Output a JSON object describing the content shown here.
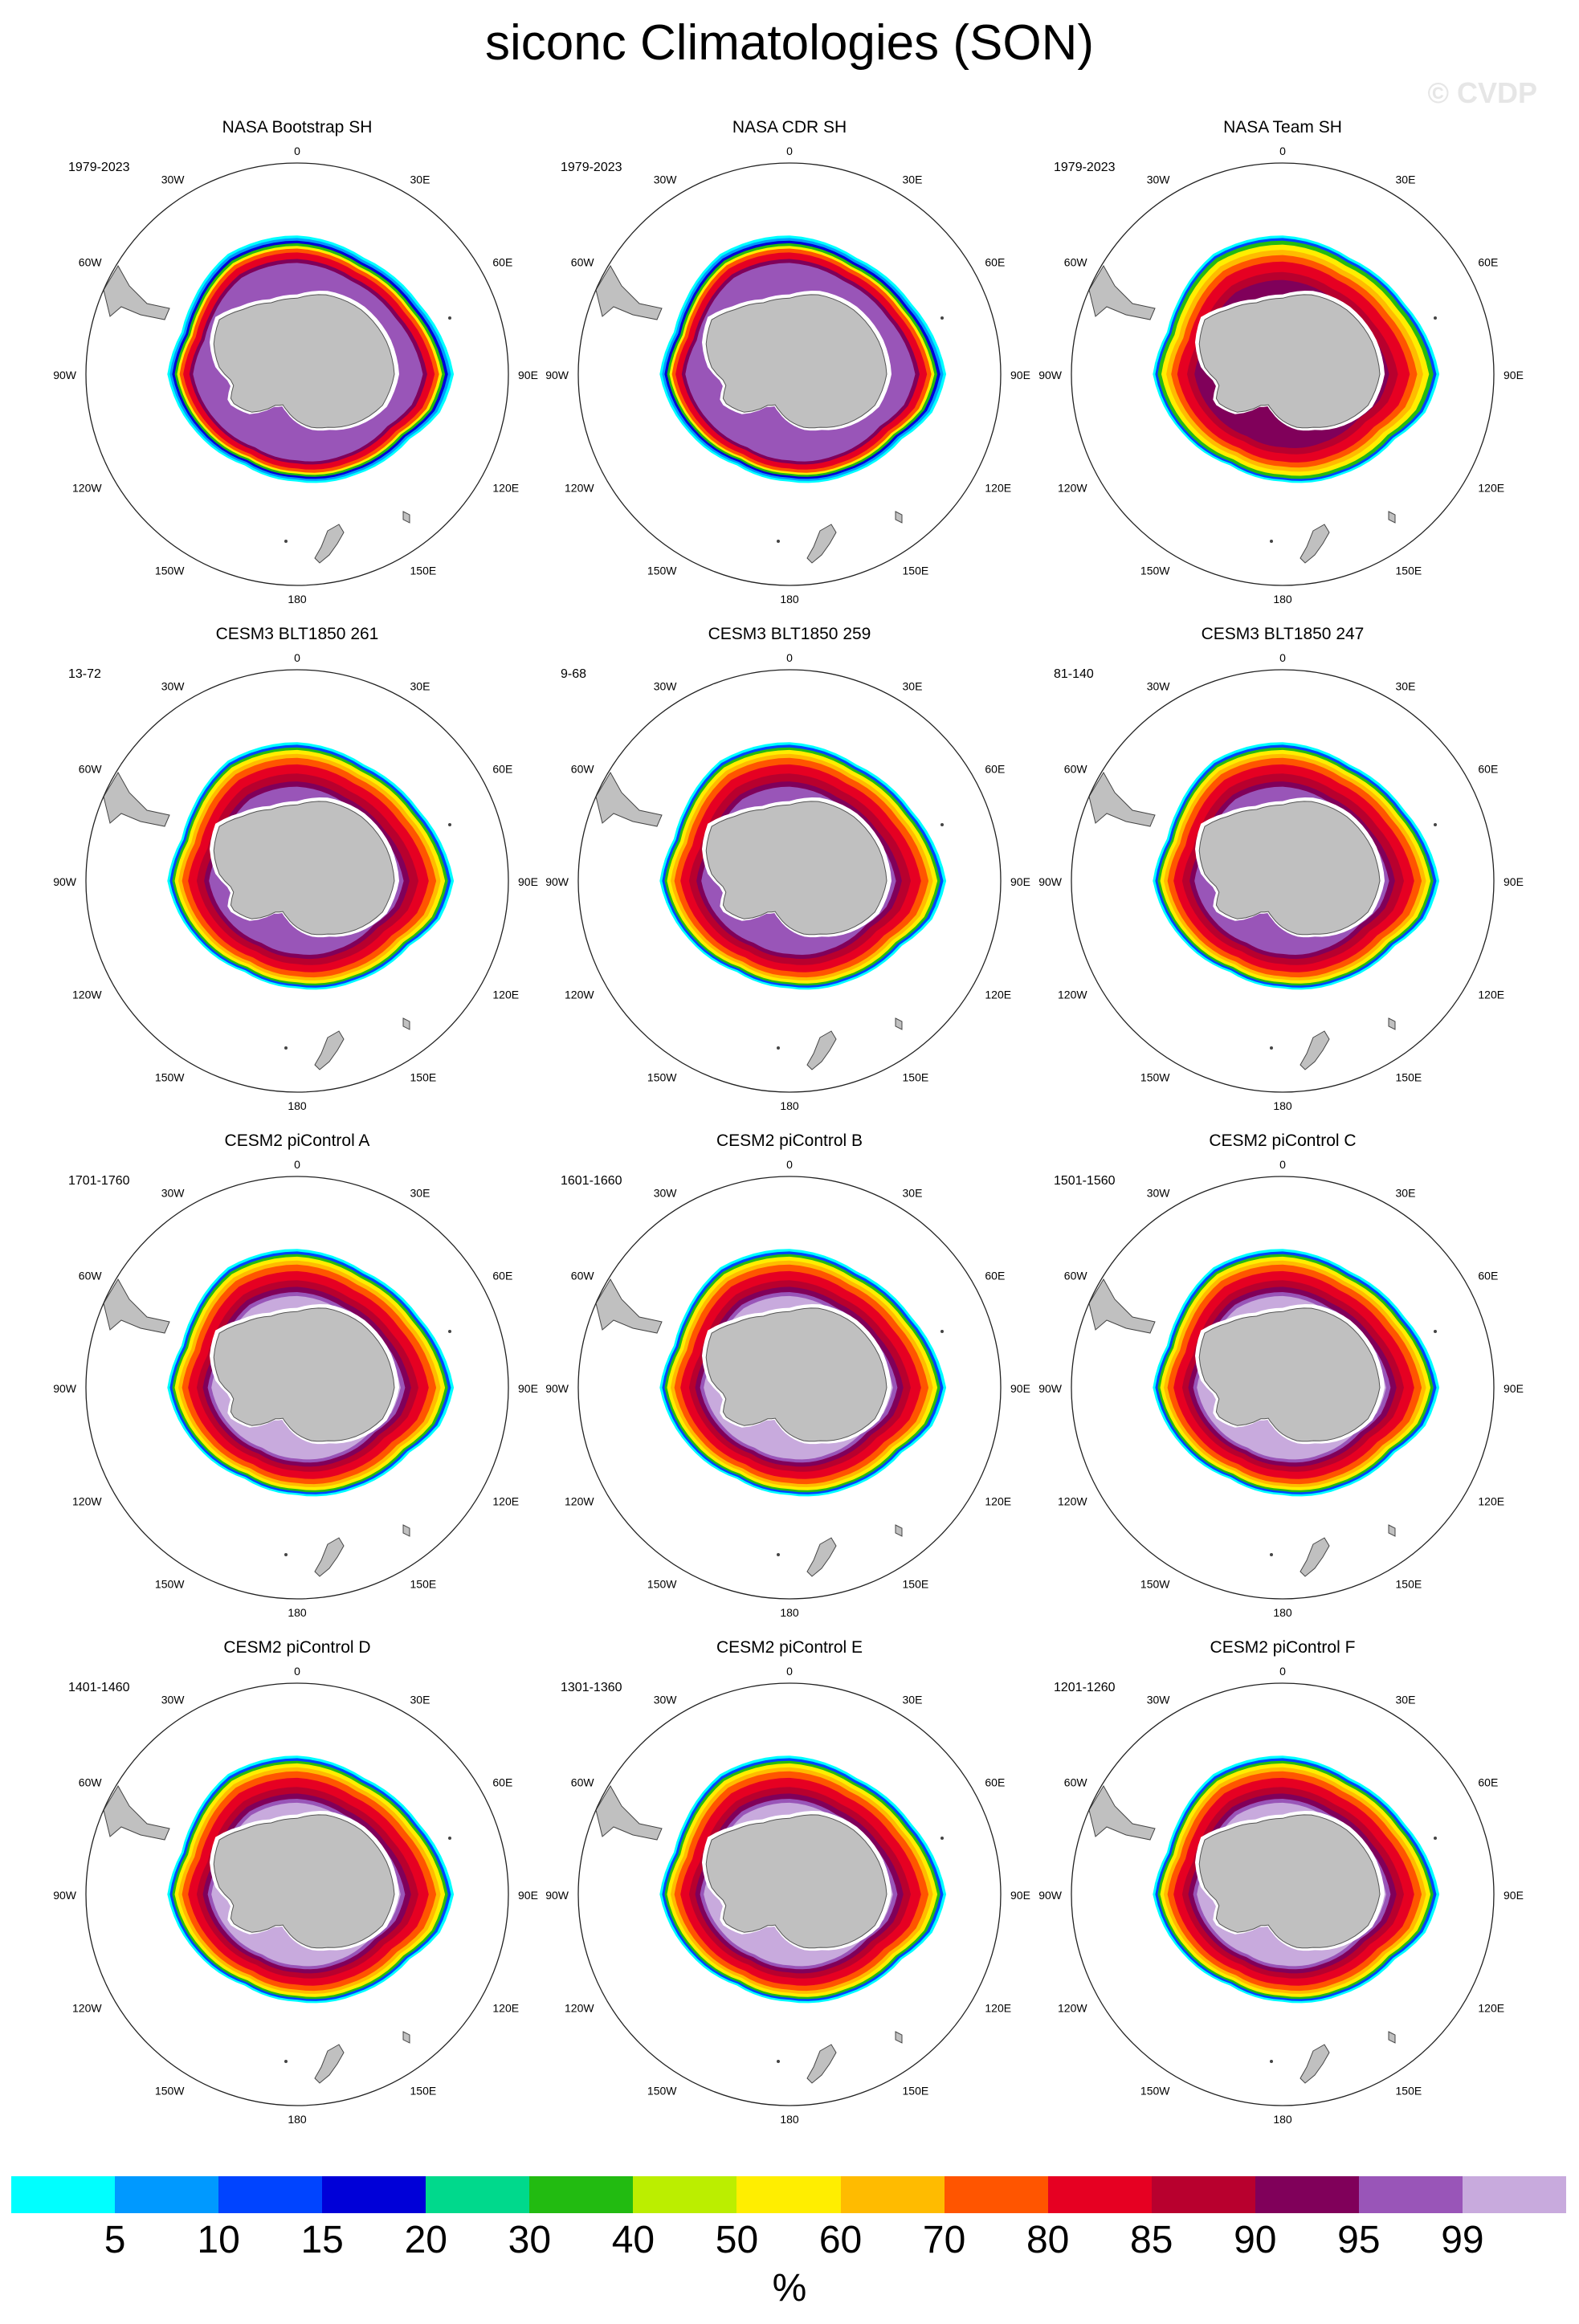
{
  "page": {
    "title": "siconc Climatologies (SON)",
    "watermark": "© CVDP"
  },
  "panels": [
    {
      "title": "NASA Bootstrap SH",
      "period": "1979-2023",
      "style": "bootstrap"
    },
    {
      "title": "NASA CDR SH",
      "period": "1979-2023",
      "style": "cdr"
    },
    {
      "title": "NASA Team SH",
      "period": "1979-2023",
      "style": "team"
    },
    {
      "title": "CESM3 BLT1850 261",
      "period": "13-72",
      "style": "cesm3"
    },
    {
      "title": "CESM3 BLT1850 259",
      "period": "9-68",
      "style": "cesm3"
    },
    {
      "title": "CESM3 BLT1850 247",
      "period": "81-140",
      "style": "cesm3"
    },
    {
      "title": "CESM2 piControl A",
      "period": "1701-1760",
      "style": "cesm2"
    },
    {
      "title": "CESM2 piControl B",
      "period": "1601-1660",
      "style": "cesm2"
    },
    {
      "title": "CESM2 piControl C",
      "period": "1501-1560",
      "style": "cesm2"
    },
    {
      "title": "CESM2 piControl D",
      "period": "1401-1460",
      "style": "cesm2"
    },
    {
      "title": "CESM2 piControl E",
      "period": "1301-1360",
      "style": "cesm2"
    },
    {
      "title": "CESM2 piControl F",
      "period": "1201-1260",
      "style": "cesm2"
    }
  ],
  "longitude_labels": [
    {
      "lon": 0,
      "text": "0"
    },
    {
      "lon": 30,
      "text": "30E"
    },
    {
      "lon": 60,
      "text": "60E"
    },
    {
      "lon": 90,
      "text": "90E"
    },
    {
      "lon": 120,
      "text": "120E"
    },
    {
      "lon": 150,
      "text": "150E"
    },
    {
      "lon": 180,
      "text": "180"
    },
    {
      "lon": -150,
      "text": "150W"
    },
    {
      "lon": -120,
      "text": "120W"
    },
    {
      "lon": -90,
      "text": "90W"
    },
    {
      "lon": -60,
      "text": "60W"
    },
    {
      "lon": -30,
      "text": "30W"
    }
  ],
  "colorbar": {
    "units": "%",
    "labels": [
      "5",
      "10",
      "15",
      "20",
      "30",
      "40",
      "50",
      "60",
      "70",
      "80",
      "85",
      "90",
      "95",
      "99"
    ],
    "colors": [
      "#00ffff",
      "#0099ff",
      "#0044ff",
      "#0000d8",
      "#00d98c",
      "#22bb11",
      "#bbee00",
      "#ffee00",
      "#ffbb00",
      "#ff5500",
      "#e60022",
      "#b8002e",
      "#80005a",
      "#9955b8",
      "#c8aadd"
    ]
  },
  "land_color": "#c0c0c0"
}
